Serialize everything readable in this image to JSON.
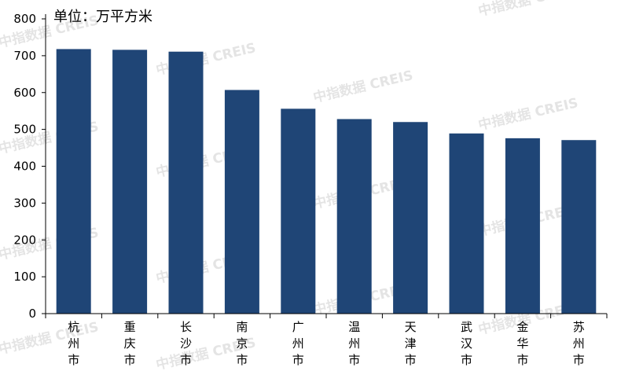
{
  "watermark": "中指数据 CREIS",
  "chart_data": {
    "type": "bar",
    "unit_label": "单位：万平方米",
    "categories": [
      "杭州市",
      "重庆市",
      "长沙市",
      "南京市",
      "广州市",
      "温州市",
      "天津市",
      "武汉市",
      "金华市",
      "苏州市"
    ],
    "values": [
      718,
      716,
      711,
      607,
      556,
      528,
      520,
      489,
      476,
      471
    ],
    "ylim": [
      0,
      800
    ],
    "yticks": [
      0,
      100,
      200,
      300,
      400,
      500,
      600,
      700,
      800
    ],
    "bar_color": "#1f4576",
    "grid": false,
    "legend": "none"
  }
}
